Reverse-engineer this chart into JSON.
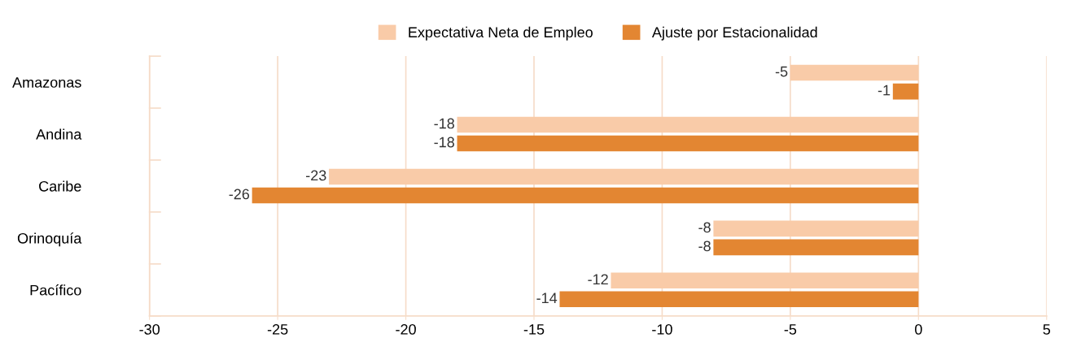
{
  "chart_data": {
    "type": "bar",
    "orientation": "horizontal",
    "categories": [
      "Amazonas",
      "Andina",
      "Caribe",
      "Orinoquía",
      "Pacífico"
    ],
    "series": [
      {
        "name": "Expectativa Neta de Empleo",
        "color": "#f9cba8",
        "values": [
          -5,
          -18,
          -23,
          -8,
          -12
        ]
      },
      {
        "name": "Ajuste por Estacionalidad",
        "color": "#e38632",
        "values": [
          -1,
          -18,
          -26,
          -8,
          -14
        ]
      }
    ],
    "xlim": [
      -30,
      5
    ],
    "xticks": [
      -30,
      -25,
      -20,
      -15,
      -10,
      -5,
      0,
      5
    ],
    "grid": "x",
    "legend": "top",
    "data_labels": true
  }
}
